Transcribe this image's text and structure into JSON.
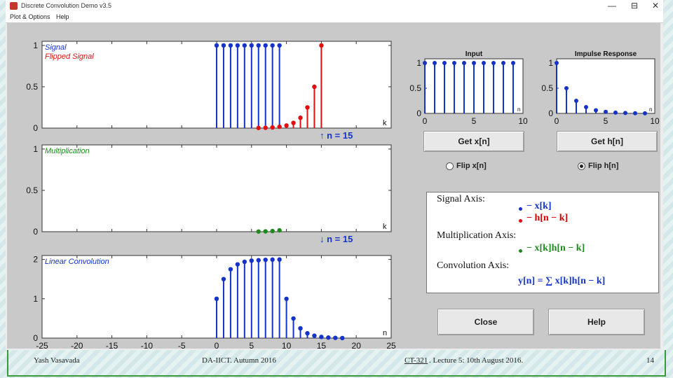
{
  "window": {
    "title": "Discrete Convolution Demo v3.5",
    "minimize": "—",
    "maximize": "⊟",
    "close": "✕"
  },
  "menubar": [
    "Plot & Options",
    "Help"
  ],
  "colors": {
    "blue": "#1533c9",
    "red": "#e01010",
    "green": "#1e8a1e"
  },
  "main_axes": [
    {
      "name": "signal-axes",
      "legend": [
        "Signal",
        "Flipped Signal"
      ],
      "x_axis_label": "k",
      "y_ticks": [
        "1",
        "0.5",
        "0"
      ],
      "arrow_label": "↑ n = 15"
    },
    {
      "name": "multiplication-axes",
      "legend": [
        "Multiplication"
      ],
      "x_axis_label": "k",
      "y_ticks": [
        "1",
        "0.5",
        "0"
      ],
      "arrow_label": "↓ n = 15"
    },
    {
      "name": "convolution-axes",
      "legend": [
        "Linear Convolution"
      ],
      "x_axis_label": "n",
      "y_ticks": [
        "2",
        "1",
        "0"
      ],
      "x_ticks": [
        "-25",
        "-20",
        "-15",
        "-10",
        "-5",
        "0",
        "5",
        "10",
        "15",
        "20",
        "25"
      ]
    }
  ],
  "input_plot": {
    "title": "Input",
    "y_ticks": [
      "1",
      "0.5",
      "0"
    ],
    "x_ticks": [
      "0",
      "5",
      "10"
    ],
    "x_axis_label": "n"
  },
  "impulse_plot": {
    "title": "Impulse Response",
    "y_ticks": [
      "1",
      "0.5",
      "0"
    ],
    "x_ticks": [
      "0",
      "5",
      "10"
    ],
    "x_axis_label": "n"
  },
  "buttons": {
    "get_x": "Get x[n]",
    "get_h": "Get h[n]",
    "close": "Close",
    "help": "Help"
  },
  "radios": {
    "flip_x": "Flip x[n]",
    "flip_h": "Flip h[n]",
    "selected": "flip_h"
  },
  "legend_panel": {
    "signal_heading": "Signal Axis:",
    "signal_x": "− x[k]",
    "signal_h": "− h[n − k]",
    "mult_heading": "Multiplication Axis:",
    "mult_expr": "− x[k]h[n − k]",
    "conv_heading": "Convolution Axis:",
    "conv_expr": "y[n] = ∑ x[k]h[n − k]"
  },
  "footer": {
    "author": "Yash Vasavada",
    "institute": "DA-IICT. Autumn 2016",
    "course": "CT-321",
    "lecture": ". Lecture 5: 10th August 2016.",
    "page": "14"
  },
  "chart_data": [
    {
      "type": "scatter",
      "title": "",
      "xlabel": "k",
      "ylabel": "",
      "xlim": [
        -25,
        25
      ],
      "ylim": [
        0,
        1.05
      ],
      "series": [
        {
          "name": "Signal",
          "x": [
            0,
            1,
            2,
            3,
            4,
            5,
            6,
            7,
            8,
            9
          ],
          "values": [
            1,
            1,
            1,
            1,
            1,
            1,
            1,
            1,
            1,
            1
          ]
        },
        {
          "name": "Flipped Signal",
          "x": [
            6,
            7,
            8,
            9,
            10,
            11,
            12,
            13,
            14,
            15
          ],
          "values": [
            0.002,
            0.004,
            0.008,
            0.016,
            0.031,
            0.063,
            0.125,
            0.25,
            0.5,
            1
          ]
        }
      ]
    },
    {
      "type": "scatter",
      "title": "",
      "xlabel": "k",
      "ylabel": "",
      "xlim": [
        -25,
        25
      ],
      "ylim": [
        0,
        1.05
      ],
      "series": [
        {
          "name": "Multiplication",
          "x": [
            6,
            7,
            8,
            9
          ],
          "values": [
            0.002,
            0.004,
            0.008,
            0.016
          ]
        }
      ]
    },
    {
      "type": "scatter",
      "title": "",
      "xlabel": "n",
      "ylabel": "",
      "xlim": [
        -25,
        25
      ],
      "ylim": [
        0,
        2.1
      ],
      "series": [
        {
          "name": "Linear Convolution",
          "x": [
            0,
            1,
            2,
            3,
            4,
            5,
            6,
            7,
            8,
            9,
            10,
            11,
            12,
            13,
            14,
            15,
            16,
            17,
            18
          ],
          "values": [
            1,
            1.5,
            1.75,
            1.875,
            1.94,
            1.97,
            1.98,
            1.99,
            1.996,
            1.998,
            0.998,
            0.498,
            0.248,
            0.123,
            0.06,
            0.03,
            0.014,
            0.006,
            0.002
          ]
        }
      ]
    },
    {
      "type": "scatter",
      "title": "Input",
      "xlabel": "n",
      "xlim": [
        0,
        10
      ],
      "ylim": [
        0,
        1
      ],
      "series": [
        {
          "name": "Input",
          "x": [
            0,
            1,
            2,
            3,
            4,
            5,
            6,
            7,
            8,
            9
          ],
          "values": [
            1,
            1,
            1,
            1,
            1,
            1,
            1,
            1,
            1,
            1
          ]
        }
      ]
    },
    {
      "type": "scatter",
      "title": "Impulse Response",
      "xlabel": "n",
      "xlim": [
        0,
        10
      ],
      "ylim": [
        0,
        1
      ],
      "series": [
        {
          "name": "Impulse Response",
          "x": [
            0,
            1,
            2,
            3,
            4,
            5,
            6,
            7,
            8,
            9
          ],
          "values": [
            1,
            0.5,
            0.25,
            0.125,
            0.0625,
            0.031,
            0.016,
            0.008,
            0.004,
            0.002
          ]
        }
      ]
    }
  ]
}
